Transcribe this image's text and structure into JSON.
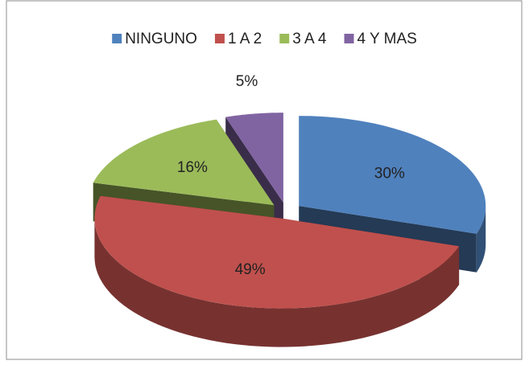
{
  "chart_data": {
    "type": "pie",
    "categories": [
      "NINGUNO",
      "1 A 2",
      "3 A 4",
      "4 Y MAS"
    ],
    "values": [
      30,
      49,
      16,
      5
    ],
    "value_labels": [
      "30%",
      "49%",
      "16%",
      "5%"
    ],
    "colors": [
      "#4f81bd",
      "#c0504d",
      "#9bbb59",
      "#8064a2"
    ],
    "legend": "top",
    "style": "3d-exploded"
  }
}
